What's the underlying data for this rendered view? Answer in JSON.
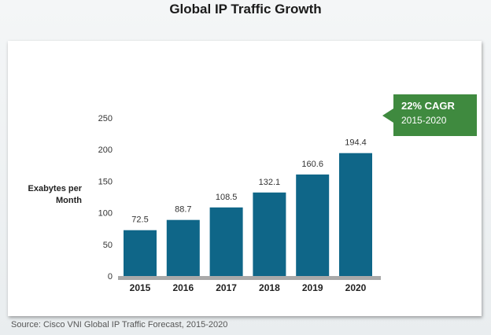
{
  "chart_data": {
    "type": "bar",
    "title": "Global IP Traffic Growth",
    "ylabel": "Exabytes per Month",
    "xlabel": "",
    "categories": [
      "2015",
      "2016",
      "2017",
      "2018",
      "2019",
      "2020"
    ],
    "values": [
      72.5,
      88.7,
      108.5,
      132.1,
      160.6,
      194.4
    ],
    "value_labels": [
      "72.5",
      "88.7",
      "108.5",
      "132.1",
      "160.6",
      "194.4"
    ],
    "ylim": [
      0,
      250
    ],
    "yticks": [
      0,
      50,
      100,
      150,
      200,
      250
    ],
    "grid": false,
    "bar_color": "#0f6688",
    "annotation": {
      "line1": "22% CAGR",
      "line2": "2015-2020",
      "color": "#3f8a3f"
    }
  },
  "source": "Source: Cisco VNI Global IP Traffic Forecast, 2015-2020"
}
